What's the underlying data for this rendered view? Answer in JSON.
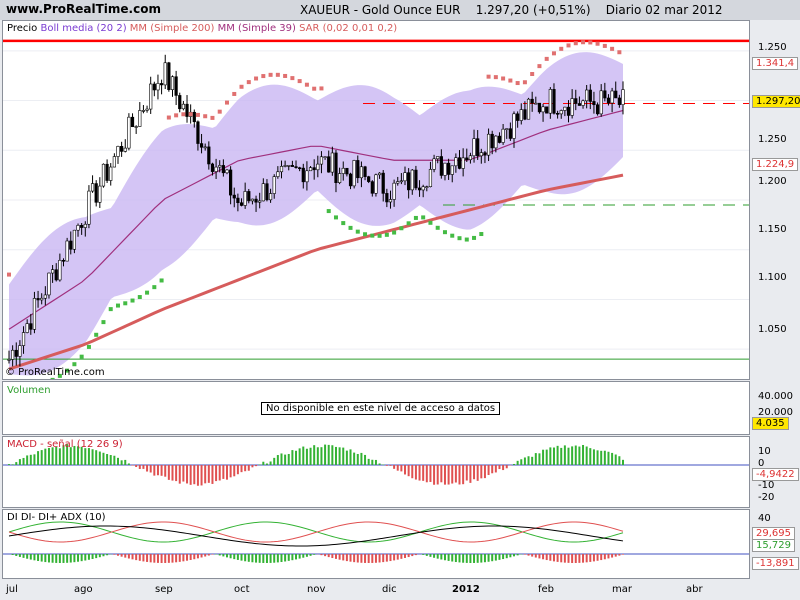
{
  "header": {
    "site": "www.ProRealTime.com",
    "instrument": "XAUEUR - Gold Ounce EUR",
    "last": "1.297,20 (+0,51%)",
    "period": "Diario  02 mar 2012"
  },
  "price_legend": {
    "precio": "Precio",
    "boll": "Boll media (20 2)",
    "mm200": "MM (Simple 200)",
    "mm39": "MM (Simple 39)",
    "sar": "SAR (0,02 0,01 0,2)"
  },
  "price_axis": {
    "ticks": [
      "1.250",
      "1.200",
      "1.150",
      "1.100",
      "1.050"
    ],
    "badges": [
      "1.341,4",
      "1.297,20",
      "1.224,9"
    ],
    "watermark": "© ProRealTime.com"
  },
  "volume": {
    "label": "Volumen",
    "notice": "No disponible en este nivel de acceso a datos",
    "ticks": [
      "40.000",
      "20.000"
    ],
    "badge": "4.035"
  },
  "macd": {
    "label": "MACD - señal (12 26 9)",
    "ticks": [
      "10",
      "0",
      "-10",
      "-20"
    ],
    "badge": "-4,9422"
  },
  "adx": {
    "label": "DI DI- DI+ ADX (10)",
    "ticks": [
      "40",
      "20",
      "0"
    ],
    "badges": [
      "29,695",
      "15,729",
      "-13,891"
    ]
  },
  "xaxis": {
    "labels": [
      "jul",
      "ago",
      "sep",
      "oct",
      "nov",
      "dic",
      "2012",
      "ene",
      "feb",
      "mar",
      "abr"
    ]
  },
  "colors": {
    "resistance": "#ff0000",
    "support": "#2e9e2e",
    "mm200": "#d65c5c",
    "mm39": "#a0307e",
    "bands": "#c9b6f2",
    "sar_up": "#44bb44",
    "sar_down": "#e07070",
    "up_bar": "#33b233",
    "down_bar": "#e05050"
  },
  "chart_data": [
    {
      "type": "line",
      "title": "XAUEUR - Gold Ounce EUR",
      "ylim": [
        1020,
        1380
      ],
      "x": [
        "jul",
        "ago",
        "sep",
        "oct",
        "nov",
        "dic",
        "ene",
        "feb",
        "mar"
      ],
      "series": [
        {
          "name": "Precio",
          "values": [
            1040,
            1190,
            1330,
            1195,
            1240,
            1210,
            1250,
            1300,
            1297
          ]
        },
        {
          "name": "MM (Simple 200)",
          "values": [
            1030,
            1055,
            1090,
            1120,
            1150,
            1170,
            1190,
            1210,
            1225
          ]
        },
        {
          "name": "MM (Simple 39)",
          "values": [
            1070,
            1120,
            1200,
            1240,
            1255,
            1240,
            1240,
            1270,
            1290
          ]
        }
      ],
      "levels": {
        "resistance": 1360,
        "support_dashed": 1195,
        "support": 1040
      }
    },
    {
      "type": "bar",
      "title": "MACD - señal (12 26 9)",
      "ylim": [
        -25,
        15
      ]
    },
    {
      "type": "line",
      "title": "DI DI- DI+ ADX (10)",
      "ylim": [
        -15,
        45
      ]
    }
  ]
}
